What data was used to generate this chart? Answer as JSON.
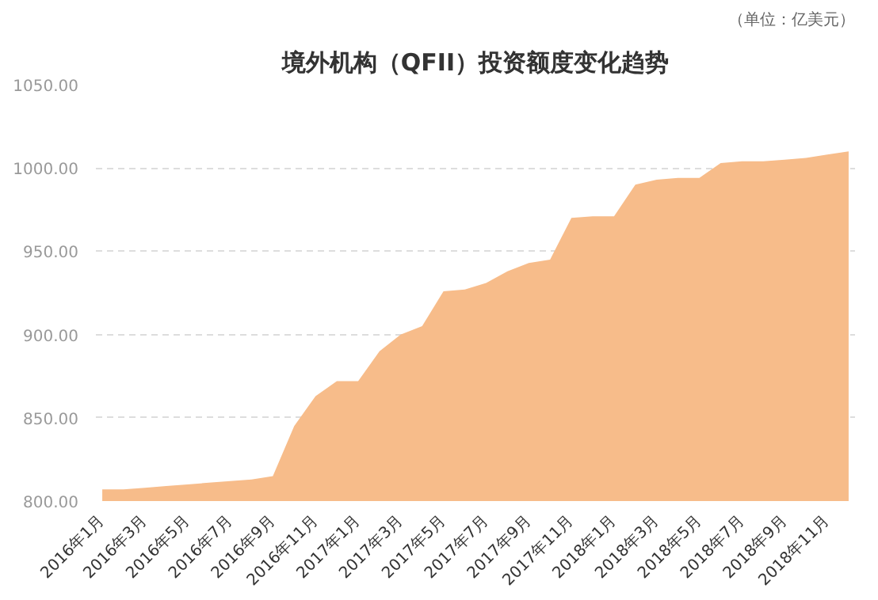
{
  "chart_data": {
    "type": "area",
    "title": "境外机构（QFII）投资额度变化趋势",
    "annotations": [
      "（单位：亿美元）"
    ],
    "categories": [
      "2016年1月",
      null,
      "2016年3月",
      null,
      "2016年5月",
      null,
      "2016年7月",
      null,
      "2016年9月",
      null,
      "2016年11月",
      null,
      "2017年1月",
      null,
      "2017年3月",
      null,
      "2017年5月",
      null,
      "2017年7月",
      null,
      "2017年9月",
      null,
      "2017年11月",
      null,
      "2018年1月",
      null,
      "2018年3月",
      null,
      "2018年5月",
      null,
      "2018年7月",
      null,
      "2018年9月",
      null,
      "2018年11月",
      null
    ],
    "series": [
      {
        "color": "#f7bc8a",
        "values": [
          807,
          807,
          808,
          809,
          810,
          811,
          812,
          813,
          815,
          845,
          863,
          872,
          872,
          890,
          900,
          905,
          926,
          927,
          931,
          938,
          943,
          945,
          970,
          971,
          971,
          990,
          993,
          994,
          994,
          1003,
          1004,
          1004,
          1005,
          1006,
          1008,
          1010
        ]
      }
    ],
    "ylim": [
      800,
      1050
    ],
    "yticks": [
      {
        "value": 800,
        "label": "800.00"
      },
      {
        "value": 850,
        "label": "850.00"
      },
      {
        "value": 900,
        "label": "900.00"
      },
      {
        "value": 950,
        "label": "950.00"
      },
      {
        "value": 1000,
        "label": "1000.00"
      },
      {
        "value": 1050,
        "label": "1050.00"
      }
    ],
    "grid": "y"
  }
}
